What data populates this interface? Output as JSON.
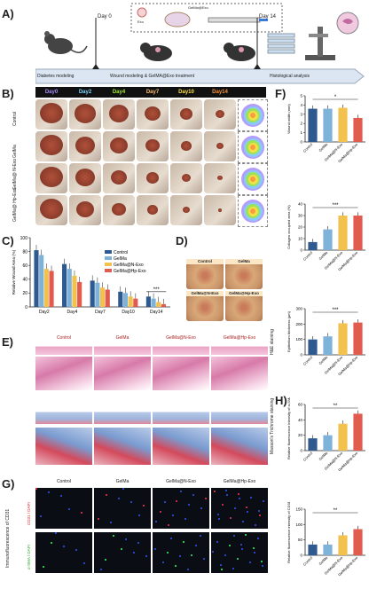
{
  "panel_labels": {
    "a": "A)",
    "b": "B)",
    "c": "C)",
    "d": "D)",
    "e": "E)",
    "f": "F)",
    "g": "G)",
    "h": "H)"
  },
  "timeline": {
    "day0": "Day 0",
    "day14": "Day 14",
    "step1": "Diabetes modeling",
    "step2": "Wound modeling & GelMA@Exo treatment",
    "step3": "Histological analysis",
    "exo": "Exo",
    "gelma_exo": "GelMa@Exo"
  },
  "b_days": [
    "Day0",
    "Day2",
    "Day4",
    "Day7",
    "Day10",
    "Day14"
  ],
  "b_day_colors": [
    "#a78bfa",
    "#7dd3fc",
    "#a3e635",
    "#fdba74",
    "#fde047",
    "#fb923c"
  ],
  "b_rows": [
    "Control",
    "GelMa",
    "GelMa@\nN-Exo",
    "GelMa@\nHp-Exo"
  ],
  "d_titles": [
    "Control",
    "GelMa",
    "GelMa@N-Exo",
    "GelMa@Hp-Exo"
  ],
  "e_cols": [
    "Control",
    "GelMa",
    "GelMa@N-Exo",
    "GelMa@Hp-Exo"
  ],
  "e_rows": {
    "he": "H&E staining",
    "masson": "Masson's Trichrome staining"
  },
  "g_cols": [
    "Control",
    "GelMa",
    "GelMa@N-Exo",
    "GelMa@Hp-Exo"
  ],
  "g_rowlabel": "Immunofluorescence of CD31",
  "g_ch1": "CD31 / DAPI",
  "g_ch2": "α-SMA / DAPI",
  "colors": {
    "control": "#2e5a8f",
    "gelma": "#7fb2d9",
    "nexo": "#f2c14e",
    "hpexo": "#e15b4f"
  },
  "chart_data": [
    {
      "id": "C",
      "type": "bar",
      "ylabel": "Relative Wound Area (%)",
      "categories": [
        "Day2",
        "Day4",
        "Day7",
        "Day10",
        "Day14"
      ],
      "ylim": [
        0,
        100
      ],
      "yticks": [
        0,
        20,
        40,
        60,
        80,
        100
      ],
      "legend": [
        "Control",
        "GelMa",
        "GelMa@N-Exo",
        "GelMa@Hp-Exo"
      ],
      "series": [
        {
          "name": "Control",
          "values": [
            82,
            62,
            38,
            22,
            15
          ]
        },
        {
          "name": "GelMa",
          "values": [
            75,
            55,
            35,
            20,
            12
          ]
        },
        {
          "name": "GelMa@N-Exo",
          "values": [
            55,
            45,
            28,
            15,
            7
          ]
        },
        {
          "name": "GelMa@Hp-Exo",
          "values": [
            52,
            36,
            25,
            12,
            4
          ]
        }
      ],
      "annotation": "***"
    },
    {
      "id": "F1",
      "type": "bar",
      "ylabel": "Wound width (mm)",
      "categories": [
        "Control",
        "GelMa",
        "GelMa@N-Exo",
        "GelMa@Hp-Exo"
      ],
      "values": [
        3.6,
        3.6,
        3.7,
        2.6
      ],
      "ylim": [
        0,
        5
      ],
      "yticks": [
        0,
        1,
        2,
        3,
        4,
        5
      ],
      "annotation": "*"
    },
    {
      "id": "F2",
      "type": "bar",
      "ylabel": "Collagen occupied area (%)",
      "categories": [
        "Control",
        "GelMa",
        "GelMa@N-Exo",
        "GelMa@Hp-Exo"
      ],
      "values": [
        7,
        18,
        30,
        30
      ],
      "ylim": [
        0,
        40
      ],
      "yticks": [
        0,
        10,
        20,
        30,
        40
      ],
      "annotation": "***"
    },
    {
      "id": "F3",
      "type": "bar",
      "ylabel": "Epithelium thickness (μm)",
      "categories": [
        "Control",
        "GelMa",
        "GelMa@N-Exo",
        "GelMa@Hp-Exo"
      ],
      "values": [
        100,
        120,
        205,
        210
      ],
      "ylim": [
        0,
        300
      ],
      "yticks": [
        0,
        100,
        200,
        300
      ],
      "annotation": "***"
    },
    {
      "id": "H1",
      "type": "bar",
      "ylabel": "Relative fluorescence intensity of α-SMA",
      "categories": [
        "Control",
        "GelMa",
        "GelMa@N-Exo",
        "GelMa@Hp-Exo"
      ],
      "values": [
        16,
        20,
        35,
        48
      ],
      "ylim": [
        0,
        60
      ],
      "yticks": [
        0,
        20,
        40,
        60
      ],
      "annotation": "**"
    },
    {
      "id": "H2",
      "type": "bar",
      "ylabel": "Relative fluorescence intensity of CD31",
      "categories": [
        "Control",
        "GelMa",
        "GelMa@N-Exo",
        "GelMa@Hp-Exo"
      ],
      "values": [
        35,
        35,
        65,
        85
      ],
      "ylim": [
        0,
        150
      ],
      "yticks": [
        0,
        50,
        100,
        150
      ],
      "annotation": "**"
    }
  ]
}
